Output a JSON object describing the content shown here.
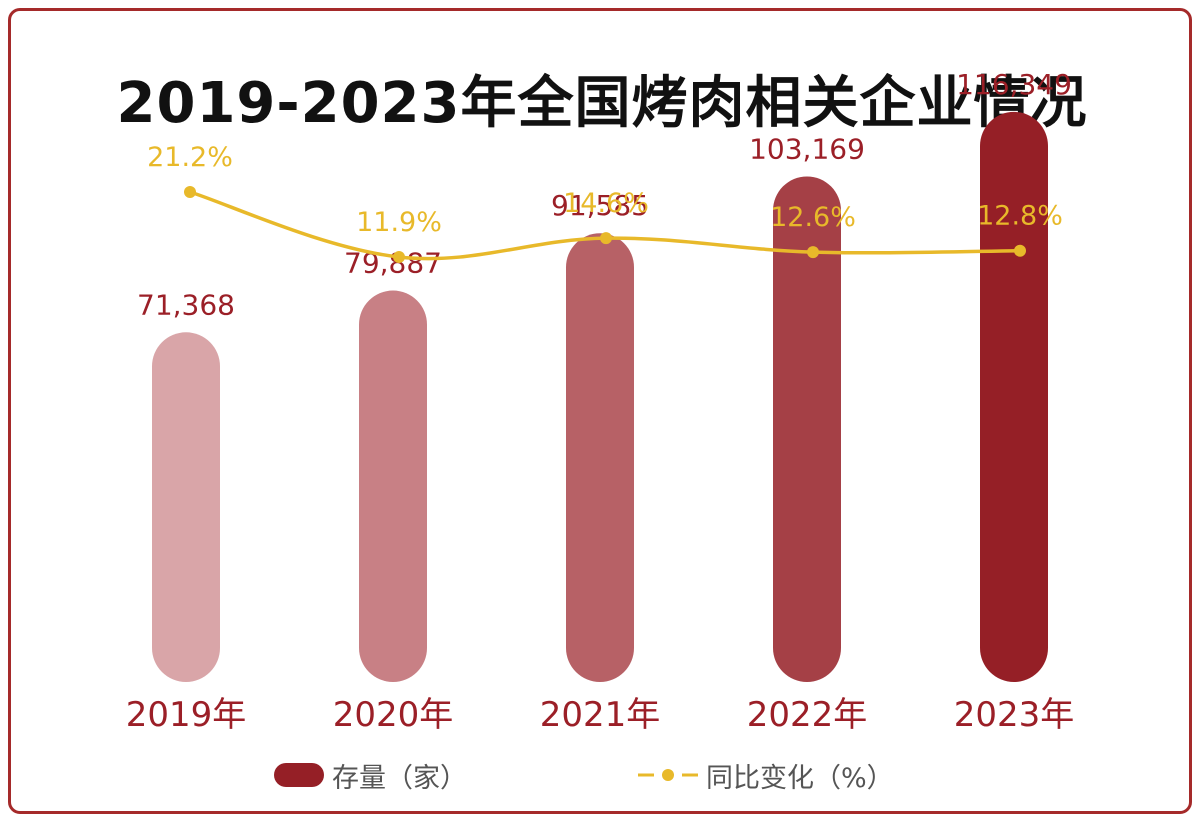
{
  "chart_data": {
    "type": "bar",
    "title": "2019-2023年全国烤肉相关企业情况",
    "categories": [
      "2019年",
      "2020年",
      "2021年",
      "2022年",
      "2023年"
    ],
    "series": [
      {
        "name": "存量（家）",
        "type": "bar",
        "values": [
          71368,
          79887,
          91585,
          103169,
          116349
        ],
        "value_labels": [
          "71,368",
          "79,887",
          "91,585",
          "103,169",
          "116,349"
        ],
        "colors": [
          "#d9a5a8",
          "#c88085",
          "#b76166",
          "#a54046",
          "#951f26"
        ]
      },
      {
        "name": "同比变化（%）",
        "type": "line",
        "values": [
          21.2,
          11.9,
          14.6,
          12.6,
          12.8
        ],
        "value_labels": [
          "21.2%",
          "11.9%",
          "14.6%",
          "12.6%",
          "12.8%"
        ],
        "color": "#e8b92a"
      }
    ],
    "legend": "bottom-center",
    "grid": false
  }
}
